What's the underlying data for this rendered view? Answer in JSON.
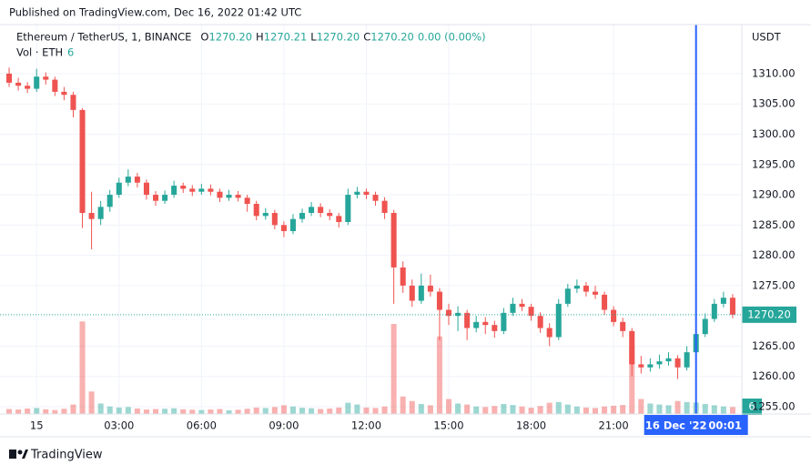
{
  "chart_data": {
    "type": "candlestick",
    "published": "Published on TradingView.com, Dec 16, 2022 01:42 UTC",
    "symbol": "Ethereum / TetherUS, 1, BINANCE",
    "ohlc_legend": [
      {
        "key": "O",
        "value": "1270.20"
      },
      {
        "key": "H",
        "value": "1270.21"
      },
      {
        "key": "L",
        "value": "1270.20"
      },
      {
        "key": "C",
        "value": "1270.20"
      }
    ],
    "change": "0.00 (0.00%)",
    "volume_legend": {
      "name": "Vol · ETH",
      "value": "6"
    },
    "currency": "USDT",
    "brand": "TradingView",
    "up_color": "#26a69a",
    "down_color": "#ef5350",
    "ylim": [
      1253.8,
      1318.1
    ],
    "yticks": [
      {
        "value": 1310,
        "label": "1310.00"
      },
      {
        "value": 1305,
        "label": "1305.00"
      },
      {
        "value": 1300,
        "label": "1300.00"
      },
      {
        "value": 1295,
        "label": "1295.00"
      },
      {
        "value": 1290,
        "label": "1290.00"
      },
      {
        "value": 1285,
        "label": "1285.00"
      },
      {
        "value": 1280,
        "label": "1280.00"
      },
      {
        "value": 1275,
        "label": "1275.00"
      },
      {
        "value": 1265,
        "label": "1265.00"
      },
      {
        "value": 1260,
        "label": "1260.00"
      },
      {
        "value": 1255,
        "label": "1255.00"
      }
    ],
    "xlim": [
      -0.5,
      80
    ],
    "xticks": [
      {
        "value": 3,
        "label": "15"
      },
      {
        "value": 12,
        "label": "03:00"
      },
      {
        "value": 21,
        "label": "06:00"
      },
      {
        "value": 30,
        "label": "09:00"
      },
      {
        "value": 39,
        "label": "12:00"
      },
      {
        "value": 48,
        "label": "15:00"
      },
      {
        "value": 57,
        "label": "18:00"
      },
      {
        "value": 66,
        "label": "21:00"
      }
    ],
    "last_price": {
      "value": 1270.2,
      "label": "1270.20"
    },
    "crosshair": {
      "value": 75,
      "date": "16 Dec '22",
      "time": "00:01"
    },
    "volume_ylim": [
      0,
      4000
    ],
    "grid": true,
    "candles": [
      [
        1310,
        1311,
        1307.8,
        1308.5
      ],
      [
        1308.5,
        1309.3,
        1307.2,
        1308
      ],
      [
        1308,
        1308.6,
        1306.8,
        1307.5
      ],
      [
        1307.5,
        1310.8,
        1307,
        1309.5
      ],
      [
        1309.5,
        1310.2,
        1308.2,
        1309
      ],
      [
        1309,
        1309.5,
        1306.3,
        1307
      ],
      [
        1307,
        1307.8,
        1305.6,
        1306.5
      ],
      [
        1306.5,
        1307,
        1302.8,
        1304
      ],
      [
        1304,
        1304.3,
        1284.5,
        1287
      ],
      [
        1287,
        1290.5,
        1281,
        1286
      ],
      [
        1286,
        1289,
        1285,
        1288
      ],
      [
        1288,
        1290.8,
        1287.2,
        1290
      ],
      [
        1290,
        1292.8,
        1289.5,
        1292
      ],
      [
        1292,
        1294.2,
        1291.4,
        1293
      ],
      [
        1293,
        1293.6,
        1291.2,
        1292
      ],
      [
        1292,
        1292.5,
        1289.2,
        1290
      ],
      [
        1290,
        1290.6,
        1288.2,
        1289
      ],
      [
        1289,
        1290.7,
        1288.5,
        1290
      ],
      [
        1290,
        1292.3,
        1289.5,
        1291.5
      ],
      [
        1291.5,
        1292,
        1290.3,
        1291
      ],
      [
        1291,
        1291.6,
        1289.8,
        1290.5
      ],
      [
        1290.5,
        1291.8,
        1290,
        1291
      ],
      [
        1291,
        1291.7,
        1289.9,
        1290.5
      ],
      [
        1290.5,
        1291,
        1288.8,
        1289.5
      ],
      [
        1289.5,
        1290.8,
        1289,
        1290
      ],
      [
        1290,
        1290.6,
        1288.9,
        1289.5
      ],
      [
        1289.5,
        1290,
        1287.2,
        1288.5
      ],
      [
        1288.5,
        1289,
        1285.8,
        1286.5
      ],
      [
        1286.5,
        1287.8,
        1285.9,
        1287
      ],
      [
        1287,
        1287.5,
        1284.3,
        1285
      ],
      [
        1285,
        1285.6,
        1283,
        1284
      ],
      [
        1284,
        1286.8,
        1283.5,
        1286
      ],
      [
        1286,
        1287.7,
        1285.4,
        1287
      ],
      [
        1287,
        1288.8,
        1286.5,
        1288
      ],
      [
        1288,
        1288.6,
        1286.3,
        1287
      ],
      [
        1287,
        1287.6,
        1285.8,
        1286.5
      ],
      [
        1286.5,
        1287,
        1284.6,
        1285.5
      ],
      [
        1285.5,
        1291,
        1285,
        1290
      ],
      [
        1290,
        1291.3,
        1289.4,
        1290.5
      ],
      [
        1290.5,
        1291,
        1289.3,
        1290
      ],
      [
        1290,
        1290.5,
        1288.2,
        1289
      ],
      [
        1289,
        1289.6,
        1286,
        1287
      ],
      [
        1287,
        1287.5,
        1272,
        1278
      ],
      [
        1278,
        1279,
        1273.8,
        1275
      ],
      [
        1275,
        1276,
        1271.5,
        1272.5
      ],
      [
        1272.5,
        1277,
        1272,
        1275
      ],
      [
        1275,
        1276.8,
        1273.2,
        1274
      ],
      [
        1274,
        1274.6,
        1266,
        1271
      ],
      [
        1271,
        1272,
        1268.5,
        1270
      ],
      [
        1270,
        1271.6,
        1267.5,
        1270.5
      ],
      [
        1270.5,
        1271,
        1266,
        1268
      ],
      [
        1268,
        1270,
        1267.3,
        1269
      ],
      [
        1269,
        1269.8,
        1267,
        1268.5
      ],
      [
        1268.5,
        1269.2,
        1266.4,
        1267.5
      ],
      [
        1267.5,
        1271.3,
        1267,
        1270.5
      ],
      [
        1270.5,
        1273,
        1270,
        1272
      ],
      [
        1272,
        1272.8,
        1270.8,
        1271.5
      ],
      [
        1271.5,
        1272,
        1269.2,
        1270
      ],
      [
        1270,
        1270.6,
        1267.2,
        1268
      ],
      [
        1268,
        1268.8,
        1265,
        1266.5
      ],
      [
        1266.5,
        1272.8,
        1266,
        1272
      ],
      [
        1272,
        1275.3,
        1271.5,
        1274.5
      ],
      [
        1274.5,
        1276,
        1273.8,
        1275
      ],
      [
        1275,
        1275.6,
        1273.2,
        1274
      ],
      [
        1274,
        1275,
        1272.8,
        1273.5
      ],
      [
        1273.5,
        1274,
        1270.2,
        1271
      ],
      [
        1271,
        1271.6,
        1268.3,
        1269
      ],
      [
        1269,
        1269.7,
        1266.5,
        1267.5
      ],
      [
        1267.5,
        1268,
        1260,
        1262
      ],
      [
        1262,
        1263.4,
        1260.5,
        1261.5
      ],
      [
        1261.5,
        1263,
        1260.8,
        1262
      ],
      [
        1262,
        1263.6,
        1261.3,
        1262.5
      ],
      [
        1262.5,
        1264,
        1261.8,
        1263
      ],
      [
        1263,
        1263.5,
        1259.6,
        1261.5
      ],
      [
        1261.5,
        1265,
        1261,
        1264
      ],
      [
        1264,
        1267.8,
        1263.5,
        1267
      ],
      [
        1267,
        1270.4,
        1266.5,
        1269.5
      ],
      [
        1269.5,
        1272.8,
        1269,
        1272
      ],
      [
        1272,
        1274,
        1271.4,
        1273
      ],
      [
        1273,
        1273.6,
        1269.6,
        1270.2
      ]
    ],
    "volume": [
      200,
      180,
      220,
      240,
      190,
      160,
      210,
      380,
      3700,
      900,
      420,
      300,
      260,
      280,
      220,
      180,
      200,
      210,
      230,
      190,
      170,
      160,
      180,
      200,
      150,
      170,
      210,
      260,
      240,
      280,
      350,
      300,
      250,
      230,
      200,
      220,
      260,
      450,
      380,
      260,
      240,
      300,
      3600,
      700,
      520,
      400,
      350,
      3100,
      600,
      420,
      380,
      300,
      280,
      320,
      400,
      360,
      300,
      250,
      320,
      450,
      480,
      380,
      300,
      260,
      240,
      300,
      330,
      360,
      2700,
      600,
      420,
      380,
      350,
      520,
      480,
      460,
      400,
      350,
      300,
      280
    ]
  }
}
